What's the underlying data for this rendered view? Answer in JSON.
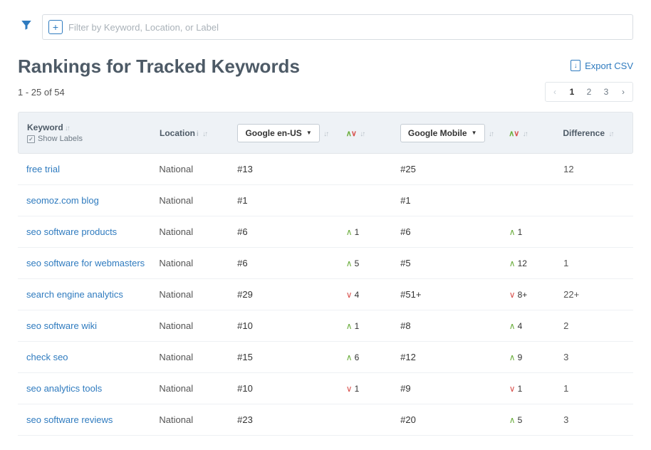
{
  "filter": {
    "placeholder": "Filter by Keyword, Location, or Label"
  },
  "page_title": "Rankings for Tracked Keywords",
  "export_label": "Export CSV",
  "result_count": "1 - 25 of 54",
  "pagination": {
    "pages": [
      "1",
      "2",
      "3"
    ],
    "current": 1
  },
  "columns": {
    "keyword": "Keyword",
    "show_labels": "Show Labels",
    "location": "Location",
    "engine1": "Google en-US",
    "engine2": "Google Mobile",
    "difference": "Difference"
  },
  "rows": [
    {
      "keyword": "free trial",
      "location": "National",
      "rank1": "#13",
      "chg1": null,
      "rank2": "#25",
      "chg2": null,
      "diff": "12"
    },
    {
      "keyword": "seomoz.com blog",
      "location": "National",
      "rank1": "#1",
      "chg1": null,
      "rank2": "#1",
      "chg2": null,
      "diff": ""
    },
    {
      "keyword": "seo software products",
      "location": "National",
      "rank1": "#6",
      "chg1": {
        "dir": "up",
        "val": "1"
      },
      "rank2": "#6",
      "chg2": {
        "dir": "up",
        "val": "1"
      },
      "diff": ""
    },
    {
      "keyword": "seo software for webmasters",
      "location": "National",
      "rank1": "#6",
      "chg1": {
        "dir": "up",
        "val": "5"
      },
      "rank2": "#5",
      "chg2": {
        "dir": "up",
        "val": "12"
      },
      "diff": "1"
    },
    {
      "keyword": "search engine analytics",
      "location": "National",
      "rank1": "#29",
      "chg1": {
        "dir": "down",
        "val": "4"
      },
      "rank2": "#51+",
      "chg2": {
        "dir": "down",
        "val": "8+"
      },
      "diff": "22+"
    },
    {
      "keyword": "seo software wiki",
      "location": "National",
      "rank1": "#10",
      "chg1": {
        "dir": "up",
        "val": "1"
      },
      "rank2": "#8",
      "chg2": {
        "dir": "up",
        "val": "4"
      },
      "diff": "2"
    },
    {
      "keyword": "check seo",
      "location": "National",
      "rank1": "#15",
      "chg1": {
        "dir": "up",
        "val": "6"
      },
      "rank2": "#12",
      "chg2": {
        "dir": "up",
        "val": "9"
      },
      "diff": "3"
    },
    {
      "keyword": "seo analytics tools",
      "location": "National",
      "rank1": "#10",
      "chg1": {
        "dir": "down",
        "val": "1"
      },
      "rank2": "#9",
      "chg2": {
        "dir": "down",
        "val": "1"
      },
      "diff": "1"
    },
    {
      "keyword": "seo software reviews",
      "location": "National",
      "rank1": "#23",
      "chg1": null,
      "rank2": "#20",
      "chg2": {
        "dir": "up",
        "val": "5"
      },
      "diff": "3"
    }
  ],
  "colors": {
    "link": "#2f7bbf",
    "up": "#6cae3e",
    "down": "#d9534f",
    "header_bg": "#eef2f6",
    "text": "#4d5a66"
  }
}
